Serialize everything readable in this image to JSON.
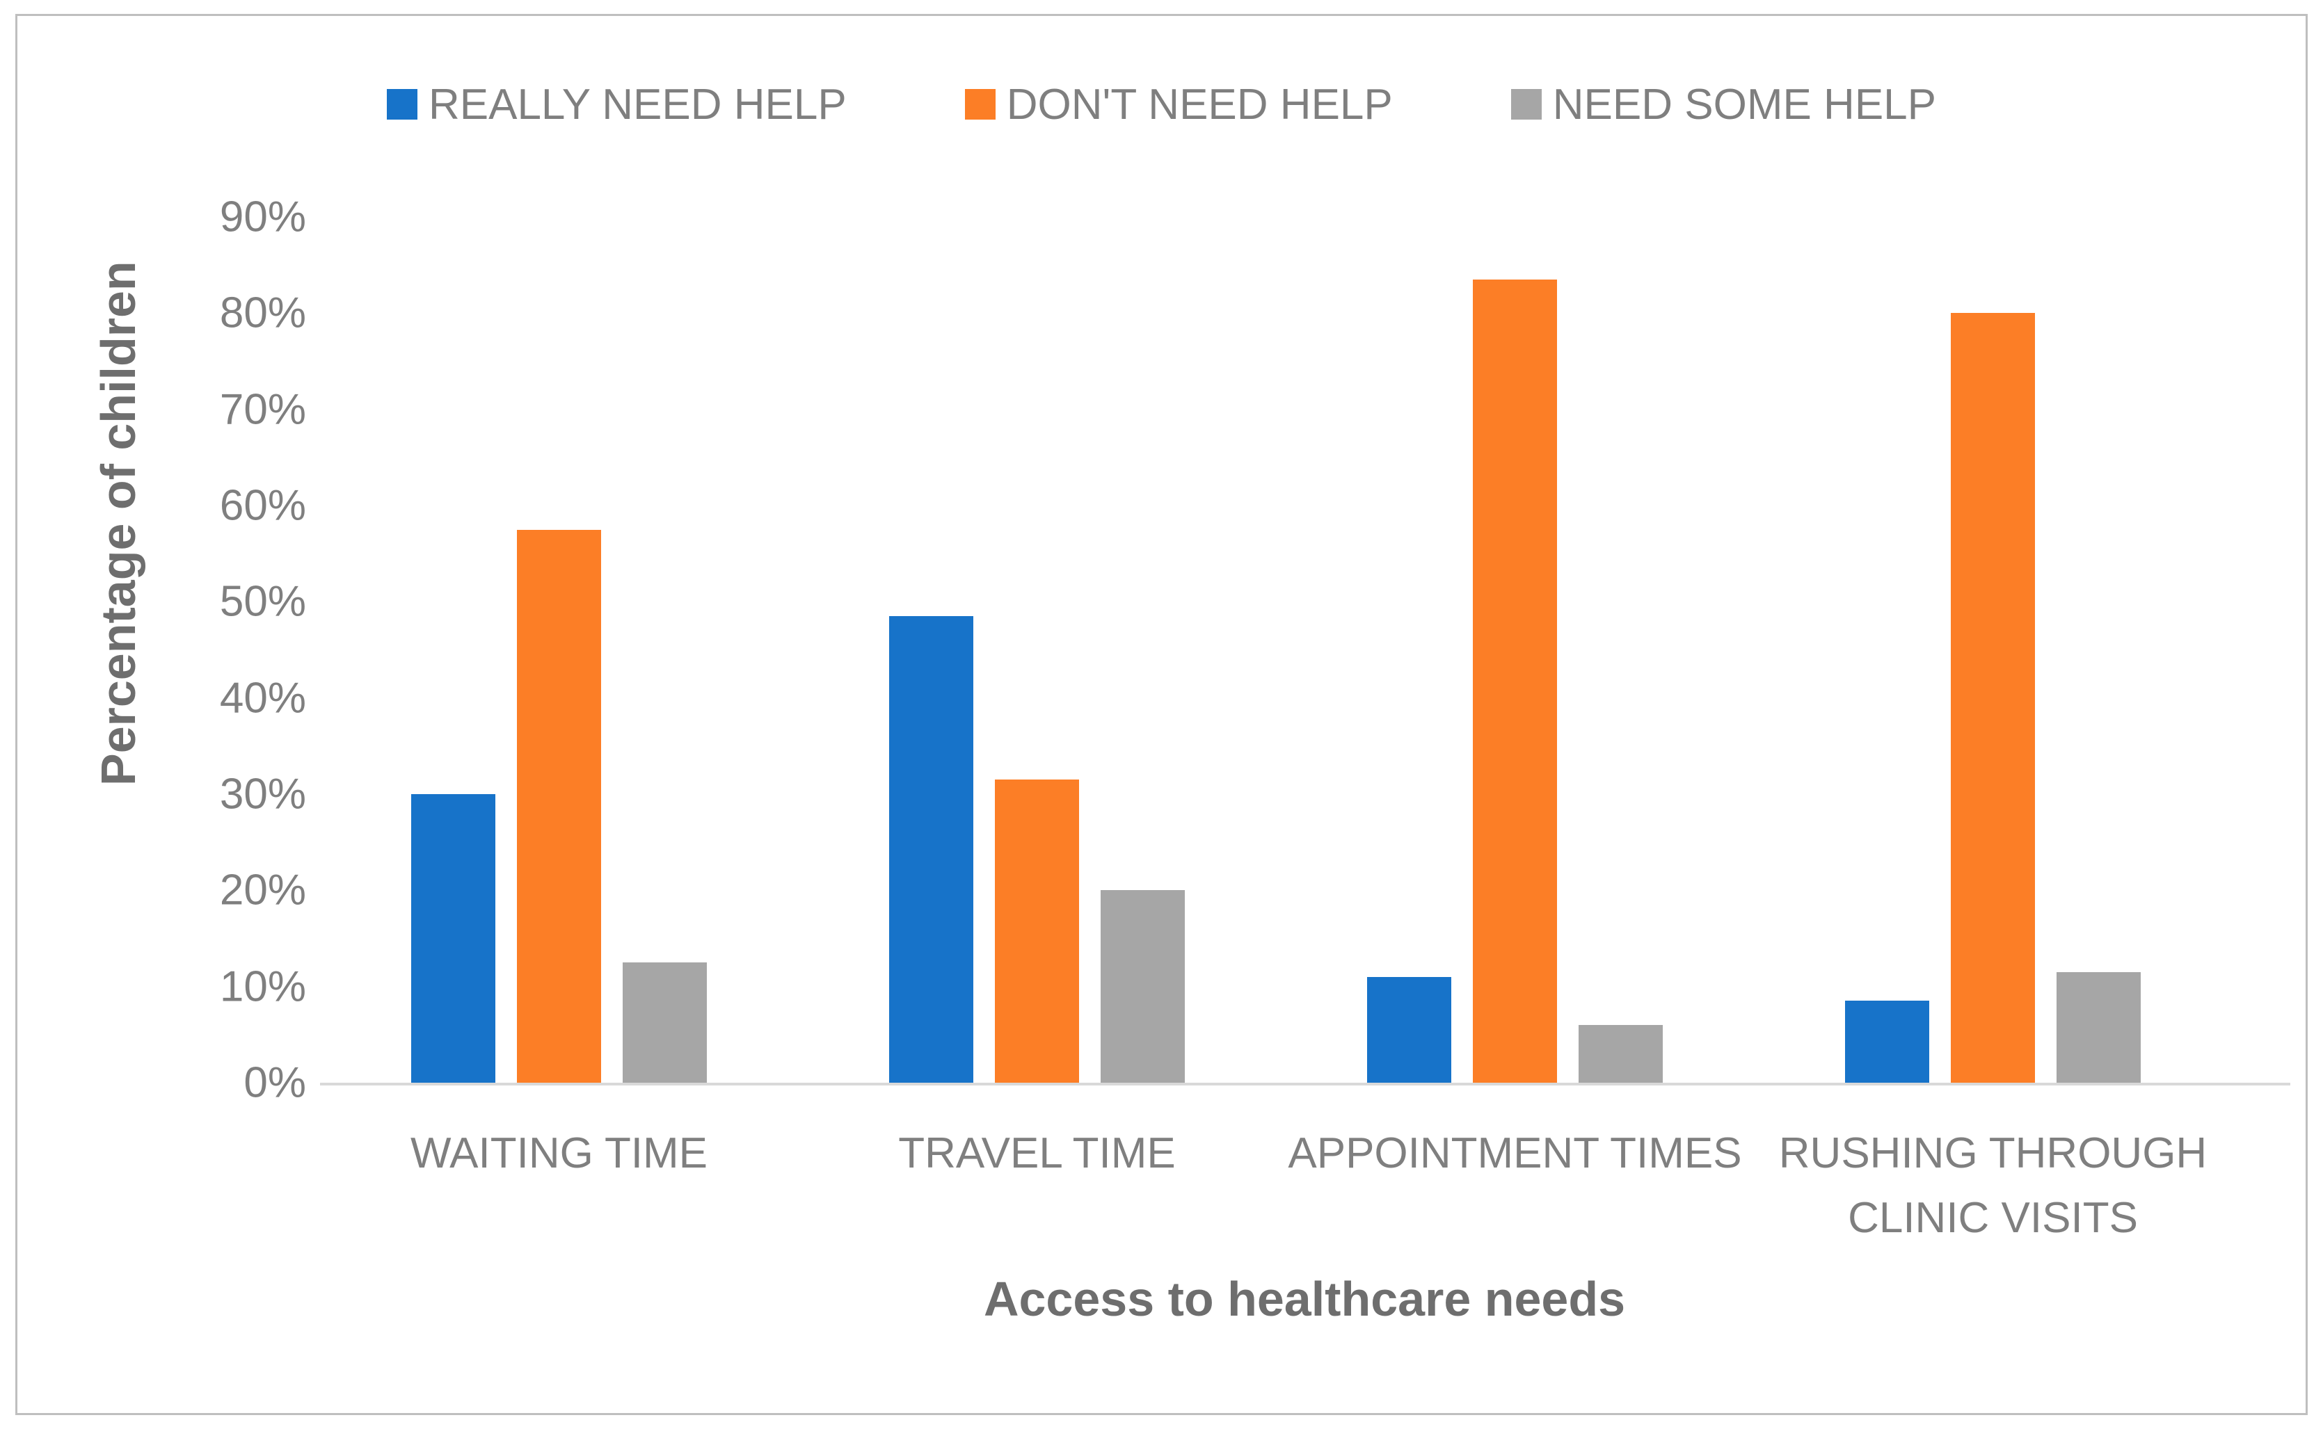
{
  "colors": {
    "blue": "#1773c9",
    "orange": "#fc7e26",
    "gray": "#a6a6a6",
    "label_text": "#7f7f7f",
    "title_text": "#6e6e6e",
    "axis_line": "#d9d9d9",
    "border": "#bfbfbf"
  },
  "chart_data": {
    "type": "bar",
    "title": "",
    "xlabel": "Access to healthcare needs",
    "ylabel": "Percentage of children",
    "categories": [
      "WAITING TIME",
      "TRAVEL TIME",
      "APPOINTMENT TIMES",
      "RUSHING THROUGH CLINIC VISITS"
    ],
    "series": [
      {
        "name": "REALLY NEED HELP",
        "color_key": "blue",
        "values": [
          30,
          48.5,
          11,
          8.5
        ]
      },
      {
        "name": "DON'T NEED HELP",
        "color_key": "orange",
        "values": [
          57.5,
          31.5,
          83.5,
          80
        ]
      },
      {
        "name": "NEED SOME HELP",
        "color_key": "gray",
        "values": [
          12.5,
          20,
          6,
          11.5
        ]
      }
    ],
    "y_ticks": [
      "0%",
      "10%",
      "20%",
      "30%",
      "40%",
      "50%",
      "60%",
      "70%",
      "80%",
      "90%"
    ],
    "ylim": [
      0,
      90
    ],
    "y_unit": "%",
    "grid": false,
    "legend_position": "top"
  }
}
